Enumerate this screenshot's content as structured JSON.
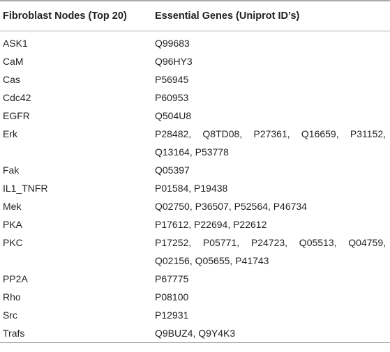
{
  "table": {
    "headers": {
      "col1": "Fibroblast Nodes (Top 20)",
      "col2": "Essential Genes (Uniprot ID’s)"
    },
    "rows": [
      {
        "node": "ASK1",
        "genes": "Q99683"
      },
      {
        "node": "CaM",
        "genes": "Q96HY3"
      },
      {
        "node": "Cas",
        "genes": "P56945"
      },
      {
        "node": "Cdc42",
        "genes": "P60953"
      },
      {
        "node": "EGFR",
        "genes": "Q504U8"
      },
      {
        "node": "Erk",
        "genes": "P28482, Q8TD08, P27361, Q16659, P31152, Q13164, P53778"
      },
      {
        "node": "Fak",
        "genes": "Q05397"
      },
      {
        "node": "IL1_TNFR",
        "genes": "P01584, P19438"
      },
      {
        "node": "Mek",
        "genes": "Q02750, P36507, P52564, P46734"
      },
      {
        "node": "PKA",
        "genes": "P17612, P22694, P22612"
      },
      {
        "node": "PKC",
        "genes": "P17252, P05771, P24723, Q05513, Q04759, Q02156, Q05655, P41743"
      },
      {
        "node": "PP2A",
        "genes": "P67775"
      },
      {
        "node": "Rho",
        "genes": "P08100"
      },
      {
        "node": "Src",
        "genes": "P12931"
      },
      {
        "node": "Trafs",
        "genes": "Q9BUZ4, Q9Y4K3"
      }
    ]
  }
}
